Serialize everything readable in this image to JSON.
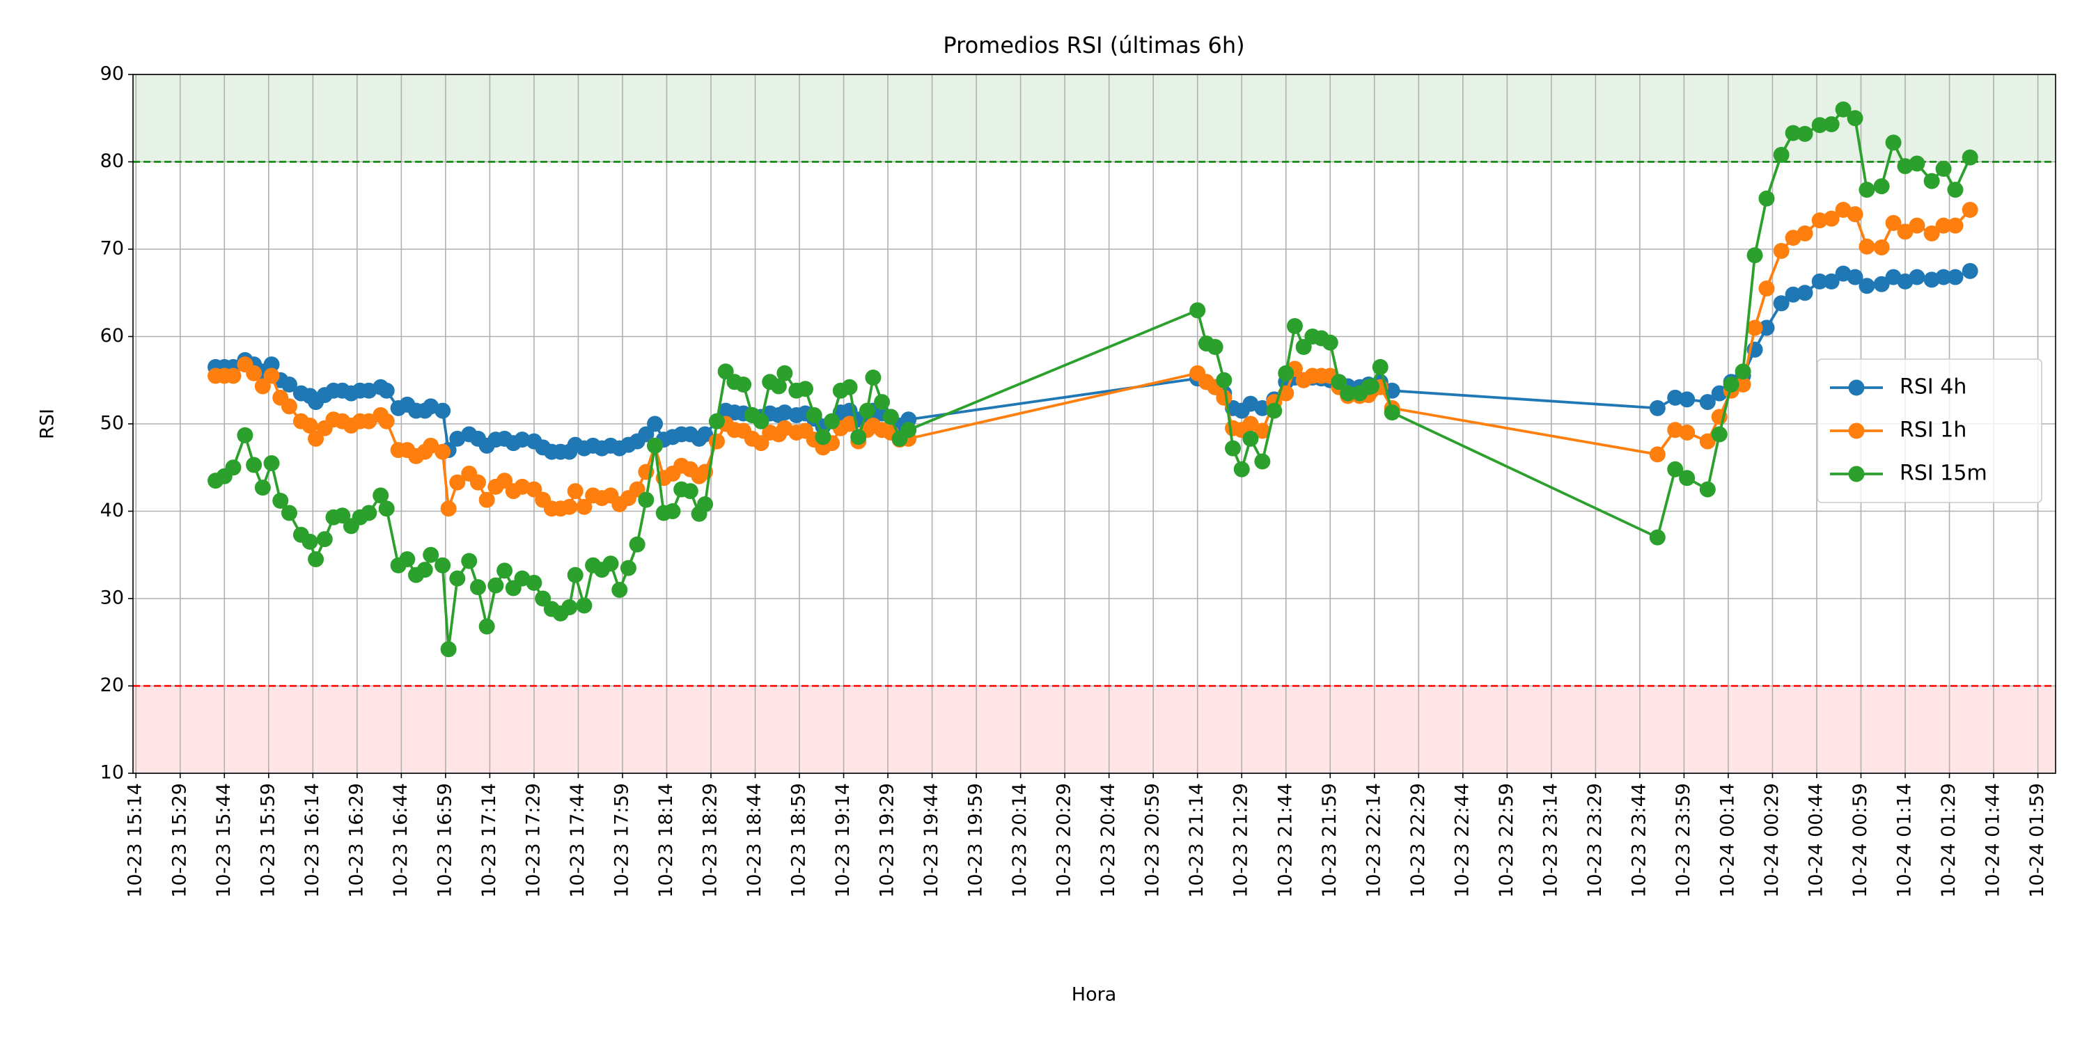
{
  "chart_data": {
    "type": "line",
    "title": "Promedios RSI (últimas 6h)",
    "x_label": "Hora",
    "y_label": "RSI",
    "x": [
      "10-23 15:41",
      "10-23 15:44",
      "10-23 15:47",
      "10-23 15:51",
      "10-23 15:54",
      "10-23 15:57",
      "10-23 16:00",
      "10-23 16:03",
      "10-23 16:06",
      "10-23 16:10",
      "10-23 16:13",
      "10-23 16:15",
      "10-23 16:18",
      "10-23 16:21",
      "10-23 16:24",
      "10-23 16:27",
      "10-23 16:30",
      "10-23 16:33",
      "10-23 16:37",
      "10-23 16:39",
      "10-23 16:43",
      "10-23 16:46",
      "10-23 16:49",
      "10-23 16:52",
      "10-23 16:54",
      "10-23 16:58",
      "10-23 17:00",
      "10-23 17:03",
      "10-23 17:07",
      "10-23 17:10",
      "10-23 17:13",
      "10-23 17:16",
      "10-23 17:19",
      "10-23 17:22",
      "10-23 17:25",
      "10-23 17:29",
      "10-23 17:32",
      "10-23 17:35",
      "10-23 17:38",
      "10-23 17:41",
      "10-23 17:43",
      "10-23 17:46",
      "10-23 17:49",
      "10-23 17:52",
      "10-23 17:55",
      "10-23 17:58",
      "10-23 18:01",
      "10-23 18:04",
      "10-23 18:07",
      "10-23 18:10",
      "10-23 18:13",
      "10-23 18:16",
      "10-23 18:19",
      "10-23 18:22",
      "10-23 18:25",
      "10-23 18:27",
      "10-23 18:31",
      "10-23 18:34",
      "10-23 18:37",
      "10-23 18:40",
      "10-23 18:43",
      "10-23 18:46",
      "10-23 18:49",
      "10-23 18:52",
      "10-23 18:54",
      "10-23 18:58",
      "10-23 19:01",
      "10-23 19:04",
      "10-23 19:07",
      "10-23 19:10",
      "10-23 19:13",
      "10-23 19:16",
      "10-23 19:19",
      "10-23 19:22",
      "10-23 19:24",
      "10-23 19:27",
      "10-23 19:30",
      "10-23 19:33",
      "10-23 19:36",
      "10-23 21:14",
      "10-23 21:17",
      "10-23 21:20",
      "10-23 21:23",
      "10-23 21:26",
      "10-23 21:29",
      "10-23 21:32",
      "10-23 21:36",
      "10-23 21:40",
      "10-23 21:44",
      "10-23 21:47",
      "10-23 21:50",
      "10-23 21:53",
      "10-23 21:56",
      "10-23 21:59",
      "10-23 22:02",
      "10-23 22:05",
      "10-23 22:09",
      "10-23 22:12",
      "10-23 22:13",
      "10-23 22:16",
      "10-23 22:20",
      "10-23 23:50",
      "10-23 23:56",
      "10-24 00:00",
      "10-24 00:07",
      "10-24 00:11",
      "10-24 00:15",
      "10-24 00:19",
      "10-24 00:23",
      "10-24 00:27",
      "10-24 00:32",
      "10-24 00:36",
      "10-24 00:40",
      "10-24 00:45",
      "10-24 00:49",
      "10-24 00:53",
      "10-24 00:57",
      "10-24 01:01",
      "10-24 01:06",
      "10-24 01:10",
      "10-24 01:14",
      "10-24 01:18",
      "10-24 01:23",
      "10-24 01:27",
      "10-24 01:31",
      "10-24 01:36"
    ],
    "series": [
      {
        "name": "RSI 4h",
        "color": "#1f77b4",
        "values": [
          56.5,
          56.5,
          56.5,
          57.3,
          56.8,
          56,
          56.8,
          55,
          54.5,
          53.5,
          53.2,
          52.5,
          53.3,
          53.8,
          53.8,
          53.5,
          53.8,
          53.8,
          54.2,
          53.8,
          51.8,
          52.2,
          51.5,
          51.5,
          52,
          51.5,
          47,
          48.3,
          48.8,
          48.3,
          47.5,
          48.2,
          48.3,
          47.8,
          48.2,
          48,
          47.3,
          46.8,
          46.8,
          46.8,
          47.6,
          47.2,
          47.5,
          47.2,
          47.5,
          47.2,
          47.6,
          48,
          48.8,
          50,
          48.2,
          48.5,
          48.8,
          48.8,
          48.3,
          48.8,
          50.3,
          51.5,
          51.3,
          51.2,
          51,
          50.8,
          51.2,
          51,
          51.3,
          51,
          51.2,
          50.6,
          49.7,
          50.3,
          51.3,
          51.5,
          50.5,
          51,
          51.5,
          51.2,
          50.8,
          49.8,
          50.5,
          55.2,
          54.8,
          54.2,
          53.5,
          51.8,
          51.5,
          52.3,
          51.8,
          52.8,
          54.8,
          55.3,
          55,
          55.3,
          55.2,
          55,
          54.5,
          54.3,
          54.2,
          54.5,
          54.3,
          54.8,
          53.8,
          51.8,
          53,
          52.8,
          52.5,
          53.5,
          54.8,
          55.5,
          58.5,
          61,
          63.8,
          64.8,
          65,
          66.3,
          66.3,
          67.2,
          66.8,
          65.8,
          66,
          66.8,
          66.3,
          66.8,
          66.5,
          66.8,
          66.8,
          67.5
        ]
      },
      {
        "name": "RSI 1h",
        "color": "#ff7f0e",
        "values": [
          55.5,
          55.5,
          55.5,
          56.8,
          55.8,
          54.3,
          55.5,
          53,
          52,
          50.3,
          49.8,
          48.3,
          49.5,
          50.5,
          50.3,
          49.8,
          50.3,
          50.3,
          51,
          50.3,
          47,
          47,
          46.3,
          46.8,
          47.5,
          46.8,
          40.3,
          43.3,
          44.3,
          43.3,
          41.3,
          42.8,
          43.5,
          42.3,
          42.8,
          42.5,
          41.3,
          40.3,
          40.3,
          40.5,
          42.3,
          40.5,
          41.8,
          41.5,
          41.8,
          40.8,
          41.5,
          42.5,
          44.5,
          47.5,
          43.8,
          44.3,
          45.2,
          44.8,
          44,
          44.5,
          48,
          50,
          49.3,
          49.2,
          48.3,
          47.8,
          49,
          48.8,
          49.5,
          49,
          49.2,
          48.2,
          47.3,
          47.8,
          49.5,
          50,
          48,
          49.3,
          49.8,
          49.3,
          49,
          48.2,
          48.3,
          55.8,
          54.8,
          54.2,
          53,
          49.5,
          49.3,
          50,
          49.2,
          52.5,
          53.5,
          56.3,
          55,
          55.5,
          55.5,
          55.5,
          54.2,
          53.2,
          53.2,
          53.3,
          53.8,
          54.2,
          51.8,
          46.5,
          49.3,
          49,
          48,
          50.8,
          53.8,
          54.5,
          61,
          65.5,
          69.8,
          71.3,
          71.8,
          73.3,
          73.5,
          74.5,
          74,
          70.3,
          70.2,
          73,
          72,
          72.7,
          71.8,
          72.7,
          72.7,
          74.5
        ]
      },
      {
        "name": "RSI 15m",
        "color": "#2ca02c",
        "values": [
          43.5,
          44,
          45,
          48.7,
          45.3,
          42.7,
          45.5,
          41.2,
          39.8,
          37.3,
          36.5,
          34.5,
          36.8,
          39.3,
          39.5,
          38.3,
          39.3,
          39.8,
          41.8,
          40.3,
          33.8,
          34.5,
          32.7,
          33.3,
          35,
          33.8,
          24.2,
          32.3,
          34.3,
          31.3,
          26.8,
          31.5,
          33.2,
          31.2,
          32.3,
          31.8,
          30,
          28.8,
          28.3,
          29,
          32.7,
          29.2,
          33.8,
          33.3,
          34,
          31,
          33.5,
          36.2,
          41.3,
          47.5,
          39.8,
          40,
          42.5,
          42.3,
          39.7,
          40.8,
          50.3,
          56,
          54.8,
          54.5,
          51,
          50.3,
          54.8,
          54.3,
          55.8,
          53.8,
          54,
          51,
          48.5,
          50.3,
          53.8,
          54.2,
          48.5,
          51.5,
          55.3,
          52.5,
          50.8,
          48.3,
          49.3,
          63,
          59.2,
          58.8,
          55,
          47.2,
          44.8,
          48.3,
          45.7,
          51.5,
          55.8,
          61.2,
          58.8,
          60,
          59.8,
          59.3,
          54.8,
          53.5,
          53.5,
          54.2,
          54.3,
          56.5,
          51.3,
          37,
          44.8,
          43.8,
          42.5,
          48.8,
          54.5,
          56,
          69.3,
          75.8,
          80.8,
          83.3,
          83.2,
          84.2,
          84.3,
          86,
          85,
          76.8,
          77.2,
          82.2,
          79.5,
          79.8,
          77.8,
          79.2,
          76.8,
          80.5
        ]
      }
    ],
    "xlim": [
      "10-23 15:13",
      "10-24 02:05"
    ],
    "xticks": [
      "10-23 15:14",
      "10-23 15:29",
      "10-23 15:44",
      "10-23 15:59",
      "10-23 16:14",
      "10-23 16:29",
      "10-23 16:44",
      "10-23 16:59",
      "10-23 17:14",
      "10-23 17:29",
      "10-23 17:44",
      "10-23 17:59",
      "10-23 18:14",
      "10-23 18:29",
      "10-23 18:44",
      "10-23 18:59",
      "10-23 19:14",
      "10-23 19:29",
      "10-23 19:44",
      "10-23 19:59",
      "10-23 20:14",
      "10-23 20:29",
      "10-23 20:44",
      "10-23 20:59",
      "10-23 21:14",
      "10-23 21:29",
      "10-23 21:44",
      "10-23 21:59",
      "10-23 22:14",
      "10-23 22:29",
      "10-23 22:44",
      "10-23 22:59",
      "10-23 23:14",
      "10-23 23:29",
      "10-23 23:44",
      "10-23 23:59",
      "10-24 00:14",
      "10-24 00:29",
      "10-24 00:44",
      "10-24 00:59",
      "10-24 01:14",
      "10-24 01:29",
      "10-24 01:44",
      "10-24 01:59"
    ],
    "ylim": [
      10,
      90
    ],
    "yticks": [
      10,
      20,
      30,
      40,
      50,
      60,
      70,
      80,
      90
    ],
    "reference_lines": [
      {
        "value": 80,
        "color": "green",
        "shade": "above"
      },
      {
        "value": 20,
        "color": "red",
        "shade": "below"
      }
    ],
    "grid": true,
    "legend": "center right"
  }
}
